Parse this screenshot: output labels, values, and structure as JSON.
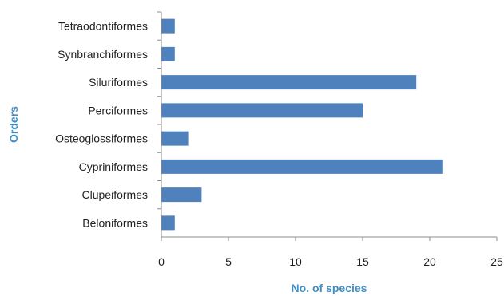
{
  "chart_data": {
    "type": "bar",
    "orientation": "horizontal",
    "categories": [
      "Beloniformes",
      "Clupeiformes",
      "Cypriniformes",
      "Osteoglossiformes",
      "Perciformes",
      "Siluriformes",
      "Synbranchiformes",
      "Tetraodontiformes"
    ],
    "values": [
      1,
      3,
      21,
      2,
      15,
      19,
      1,
      1
    ],
    "title": "",
    "xlabel": "No. of species",
    "ylabel": "Orders",
    "xlim": [
      0,
      25
    ],
    "xticks": [
      0,
      5,
      10,
      15,
      20,
      25
    ],
    "grid": false,
    "legend": "none",
    "colors": {
      "bar": "#4f81bd",
      "axis_title": "#3f8fc6",
      "axis_line": "#8c8c8c",
      "text": "#1f1f1f"
    }
  }
}
